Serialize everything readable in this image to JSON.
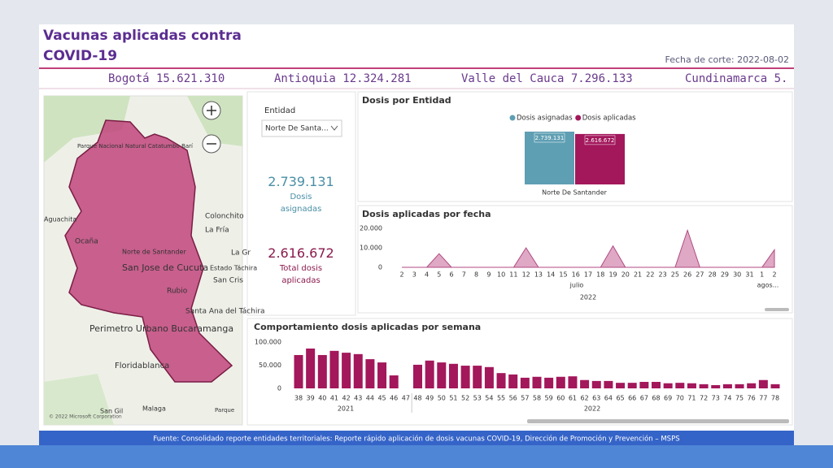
{
  "header": {
    "title": "Vacunas aplicadas contra COVID-19",
    "date": "Fecha de corte: 2022-08-02"
  },
  "ticker": [
    "Bogotá 15.621.310",
    "Antioquia 12.324.281",
    "Valle del Cauca 7.296.133",
    "Cundinamarca 5."
  ],
  "map": {
    "labels": [
      "Parque Nacional Natural Catatumbo Barí",
      "Aguachita",
      "Ocaña",
      "Norte de Santander",
      "San Jose de Cucuta",
      "Rubio",
      "Colonchito",
      "La Fría",
      "La Gr",
      "Estado Táchira",
      "San Cris",
      "Santa Ana del Táchira",
      "Perimetro Urbano Bucaramanga",
      "Floridablanca",
      "Malaga",
      "San Gil",
      "Parque"
    ],
    "copyright": "© 2022 Microsoft Corporation"
  },
  "slicer": {
    "label": "Entidad",
    "selected": "Norte De Santa..."
  },
  "kpis": [
    {
      "value": "2.739.131",
      "label": "Dosis asignadas"
    },
    {
      "value": "2.616.672",
      "label": "Total dosis aplicadas"
    }
  ],
  "chart_data": [
    {
      "type": "bar",
      "title": "Dosis por Entidad",
      "categories": [
        "Norte De Santander"
      ],
      "series": [
        {
          "name": "Dosis asignadas",
          "color": "#5f9fb3",
          "values": [
            2739131
          ],
          "value_labels": [
            "2.739.131"
          ]
        },
        {
          "name": "Dosis aplicadas",
          "color": "#a3175b",
          "values": [
            2616672
          ],
          "value_labels": [
            "2.616.672"
          ]
        }
      ]
    },
    {
      "type": "area",
      "title": "Dosis aplicadas por fecha",
      "categories": [
        "2",
        "3",
        "4",
        "5",
        "6",
        "7",
        "8",
        "9",
        "10",
        "11",
        "12",
        "13",
        "14",
        "15",
        "16",
        "17",
        "18",
        "19",
        "20",
        "21",
        "22",
        "23",
        "25",
        "26",
        "27",
        "28",
        "29",
        "30",
        "31",
        "1",
        "2"
      ],
      "values": [
        0,
        0,
        0,
        7000,
        0,
        0,
        0,
        0,
        0,
        0,
        10000,
        0,
        0,
        0,
        0,
        0,
        0,
        11000,
        0,
        0,
        0,
        0,
        0,
        19000,
        0,
        0,
        0,
        0,
        0,
        0,
        9000
      ],
      "color": "#d48bb0",
      "month_labels": [
        "julio",
        "agos..."
      ],
      "year_label": "2022",
      "ylim": [
        0,
        20000
      ],
      "yticks": [
        0,
        {
          "value": 10000,
          "label": "10.000"
        },
        {
          "value": 20000,
          "label": "20.000"
        }
      ]
    },
    {
      "type": "bar",
      "title": "Comportamiento dosis aplicadas por semana",
      "categories": [
        "38",
        "39",
        "40",
        "41",
        "42",
        "43",
        "44",
        "45",
        "46",
        "47",
        "48",
        "49",
        "50",
        "51",
        "52",
        "53",
        "54",
        "55",
        "56",
        "57",
        "58",
        "59",
        "60",
        "61",
        "62",
        "63",
        "64",
        "65",
        "66",
        "67",
        "68",
        "69",
        "70",
        "71",
        "72",
        "73",
        "74",
        "75",
        "76",
        "77",
        "78"
      ],
      "values": [
        72000,
        86000,
        72000,
        81000,
        77000,
        74000,
        63000,
        56000,
        28000,
        0,
        51000,
        60000,
        56000,
        53000,
        49000,
        49000,
        46000,
        33000,
        30000,
        23000,
        25000,
        23000,
        25000,
        26000,
        18000,
        16000,
        16000,
        12000,
        12000,
        14000,
        14000,
        11000,
        12000,
        11000,
        9000,
        7000,
        9000,
        9000,
        11000,
        18000,
        9000
      ],
      "color": "#a3175b",
      "year_labels": [
        "2021",
        "2022"
      ],
      "ylim": [
        0,
        100000
      ],
      "yticks": [
        0,
        {
          "value": 50000,
          "label": "50.000"
        },
        {
          "value": 100000,
          "label": "100.000"
        }
      ]
    }
  ],
  "footer": "Fuente: Consolidado reporte entidades territoriales: Reporte rápido aplicación de dosis vacunas COVID-19, Dirección de Promoción y Prevención – MSPS"
}
